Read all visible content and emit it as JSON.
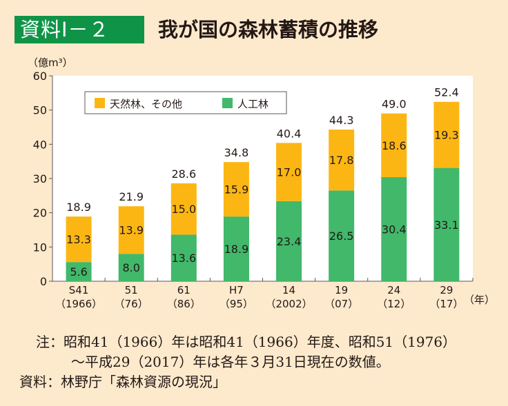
{
  "header": {
    "badge": "資料Ⅰ－２",
    "title": "我が国の森林蓄積の推移"
  },
  "colors": {
    "background": "#fde9cc",
    "badge": "#0f9447",
    "natural": "#fcb614",
    "planted": "#41b86a",
    "text": "#231815"
  },
  "chart_data": {
    "type": "bar",
    "stacked": true,
    "title": "我が国の森林蓄積の推移",
    "ylabel": "（億m³）",
    "xlabel": "（年）",
    "ylim": [
      0,
      60
    ],
    "yticks": [
      0,
      10,
      20,
      30,
      40,
      50,
      60
    ],
    "grid": false,
    "legend_position": "top-left",
    "categories": [
      {
        "line1": "S41",
        "line2": "（1966）"
      },
      {
        "line1": "51",
        "line2": "（76）"
      },
      {
        "line1": "61",
        "line2": "（86）"
      },
      {
        "line1": "H7",
        "line2": "（95）"
      },
      {
        "line1": "14",
        "line2": "（2002）"
      },
      {
        "line1": "19",
        "line2": "（07）"
      },
      {
        "line1": "24",
        "line2": "（12）"
      },
      {
        "line1": "29",
        "line2": "（17）"
      }
    ],
    "series": [
      {
        "name": "人工林",
        "color": "#41b86a",
        "values": [
          5.6,
          8.0,
          13.6,
          18.9,
          23.4,
          26.5,
          30.4,
          33.1
        ]
      },
      {
        "name": "天然林、その他",
        "color": "#fcb614",
        "values": [
          13.3,
          13.9,
          15.0,
          15.9,
          17.0,
          17.8,
          18.6,
          19.3
        ]
      }
    ],
    "totals": [
      18.9,
      21.9,
      28.6,
      34.8,
      40.4,
      44.3,
      49.0,
      52.4
    ],
    "legend": [
      "天然林、その他",
      "人工林"
    ]
  },
  "notes": {
    "note_line1": "注：昭和41（1966）年は昭和41（1966）年度、昭和51（1976）",
    "note_line2": "～平成29（2017）年は各年３月31日現在の数値。",
    "source": "資料：林野庁「森林資源の現況」"
  }
}
